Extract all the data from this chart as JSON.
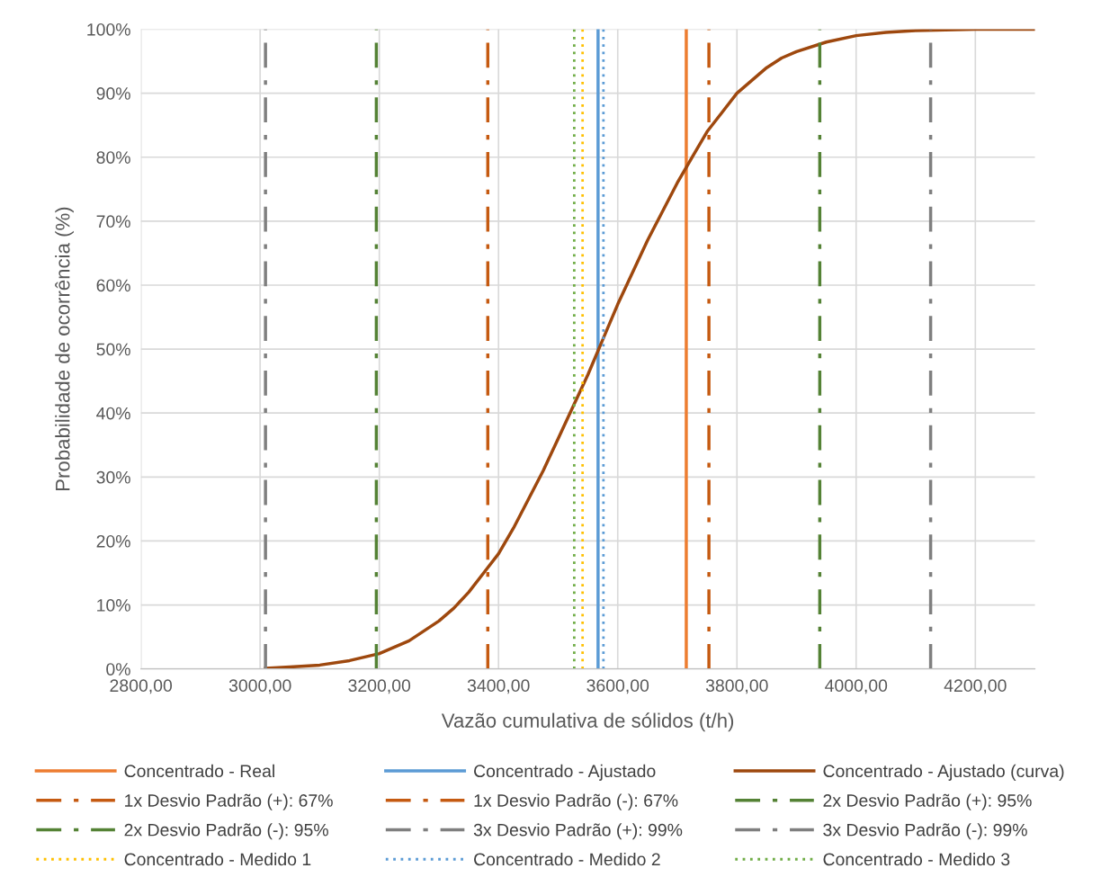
{
  "chart_data": {
    "type": "line",
    "xlabel": "Vazão cumulativa de sólidos (t/h)",
    "ylabel": "Probabilidade de ocorrência (%)",
    "series": [
      {
        "name": "Concentrado - Real",
        "color": "#ed7d31",
        "line_style": "solid",
        "x": [
          3715,
          3715
        ],
        "values": [
          0,
          100
        ]
      },
      {
        "name": "Concentrado - Ajustado",
        "color": "#5b9bd5",
        "line_style": "solid",
        "x": [
          3567,
          3567
        ],
        "values": [
          0,
          100
        ]
      },
      {
        "name": "Concentrado - Ajustado (curva)",
        "color": "#9e480e",
        "line_style": "solid",
        "x": [
          3009,
          3050,
          3100,
          3150,
          3200,
          3250,
          3300,
          3325,
          3350,
          3375,
          3400,
          3425,
          3450,
          3475,
          3500,
          3525,
          3550,
          3575,
          3600,
          3625,
          3650,
          3675,
          3700,
          3725,
          3750,
          3775,
          3800,
          3825,
          3850,
          3875,
          3900,
          3950,
          4000,
          4050,
          4100,
          4150,
          4200,
          4250,
          4300
        ],
        "values": [
          0.1,
          0.3,
          0.6,
          1.3,
          2.4,
          4.4,
          7.5,
          9.5,
          12,
          15,
          18,
          22,
          26.5,
          31,
          36,
          41,
          46,
          51.5,
          57,
          62,
          67,
          71.5,
          76,
          80,
          84,
          87,
          90,
          92,
          94,
          95.5,
          96.5,
          98,
          99,
          99.5,
          99.8,
          99.9,
          100,
          100,
          100
        ]
      },
      {
        "name": "1x Desvio Padrão (+): 67%",
        "color": "#c55a11",
        "line_style": "dashdot",
        "x": [
          3753,
          3753
        ],
        "values": [
          0,
          100
        ]
      },
      {
        "name": "1x Desvio Padrão (-): 67%",
        "color": "#c55a11",
        "line_style": "dashdot",
        "x": [
          3382,
          3382
        ],
        "values": [
          0,
          100
        ]
      },
      {
        "name": "2x Desvio Padrão (+): 95%",
        "color": "#548235",
        "line_style": "dashdot",
        "x": [
          3939,
          3939
        ],
        "values": [
          0,
          100
        ]
      },
      {
        "name": "2x Desvio Padrão (-): 95%",
        "color": "#548235",
        "line_style": "dashdot",
        "x": [
          3195,
          3195
        ],
        "values": [
          0,
          100
        ]
      },
      {
        "name": "3x Desvio Padrão (+): 99%",
        "color": "#7f7f7f",
        "line_style": "dashdot",
        "x": [
          4125,
          4125
        ],
        "values": [
          0,
          100
        ]
      },
      {
        "name": "3x Desvio Padrão (-): 99%",
        "color": "#7f7f7f",
        "line_style": "dashdot",
        "x": [
          3009,
          3009
        ],
        "values": [
          0,
          100
        ]
      },
      {
        "name": "Concentrado - Medido 1",
        "color": "#ffc000",
        "line_style": "dotted",
        "x": [
          3541,
          3541
        ],
        "values": [
          0,
          100
        ]
      },
      {
        "name": "Concentrado - Medido 2",
        "color": "#5b9bd5",
        "line_style": "dotted",
        "x": [
          3576,
          3576
        ],
        "values": [
          0,
          100
        ]
      },
      {
        "name": "Concentrado - Medido 3",
        "color": "#70ad47",
        "line_style": "dotted",
        "x": [
          3527,
          3527
        ],
        "values": [
          0,
          100
        ]
      }
    ],
    "xlim": [
      2800,
      4300
    ],
    "xticks": [
      {
        "value": 2800,
        "label": "2800,00"
      },
      {
        "value": 3000,
        "label": "3000,00"
      },
      {
        "value": 3200,
        "label": "3200,00"
      },
      {
        "value": 3400,
        "label": "3400,00"
      },
      {
        "value": 3600,
        "label": "3600,00"
      },
      {
        "value": 3800,
        "label": "3800,00"
      },
      {
        "value": 4000,
        "label": "4000,00"
      },
      {
        "value": 4200,
        "label": "4200,00"
      }
    ],
    "ylim": [
      0,
      100
    ],
    "yticks": [
      {
        "value": 0,
        "label": "0%"
      },
      {
        "value": 10,
        "label": "10%"
      },
      {
        "value": 20,
        "label": "20%"
      },
      {
        "value": 30,
        "label": "30%"
      },
      {
        "value": 40,
        "label": "40%"
      },
      {
        "value": 50,
        "label": "50%"
      },
      {
        "value": 60,
        "label": "60%"
      },
      {
        "value": 70,
        "label": "70%"
      },
      {
        "value": 80,
        "label": "80%"
      },
      {
        "value": 90,
        "label": "90%"
      },
      {
        "value": 100,
        "label": "100%"
      }
    ],
    "grid": true,
    "legend": "bottom",
    "marker": "none"
  }
}
